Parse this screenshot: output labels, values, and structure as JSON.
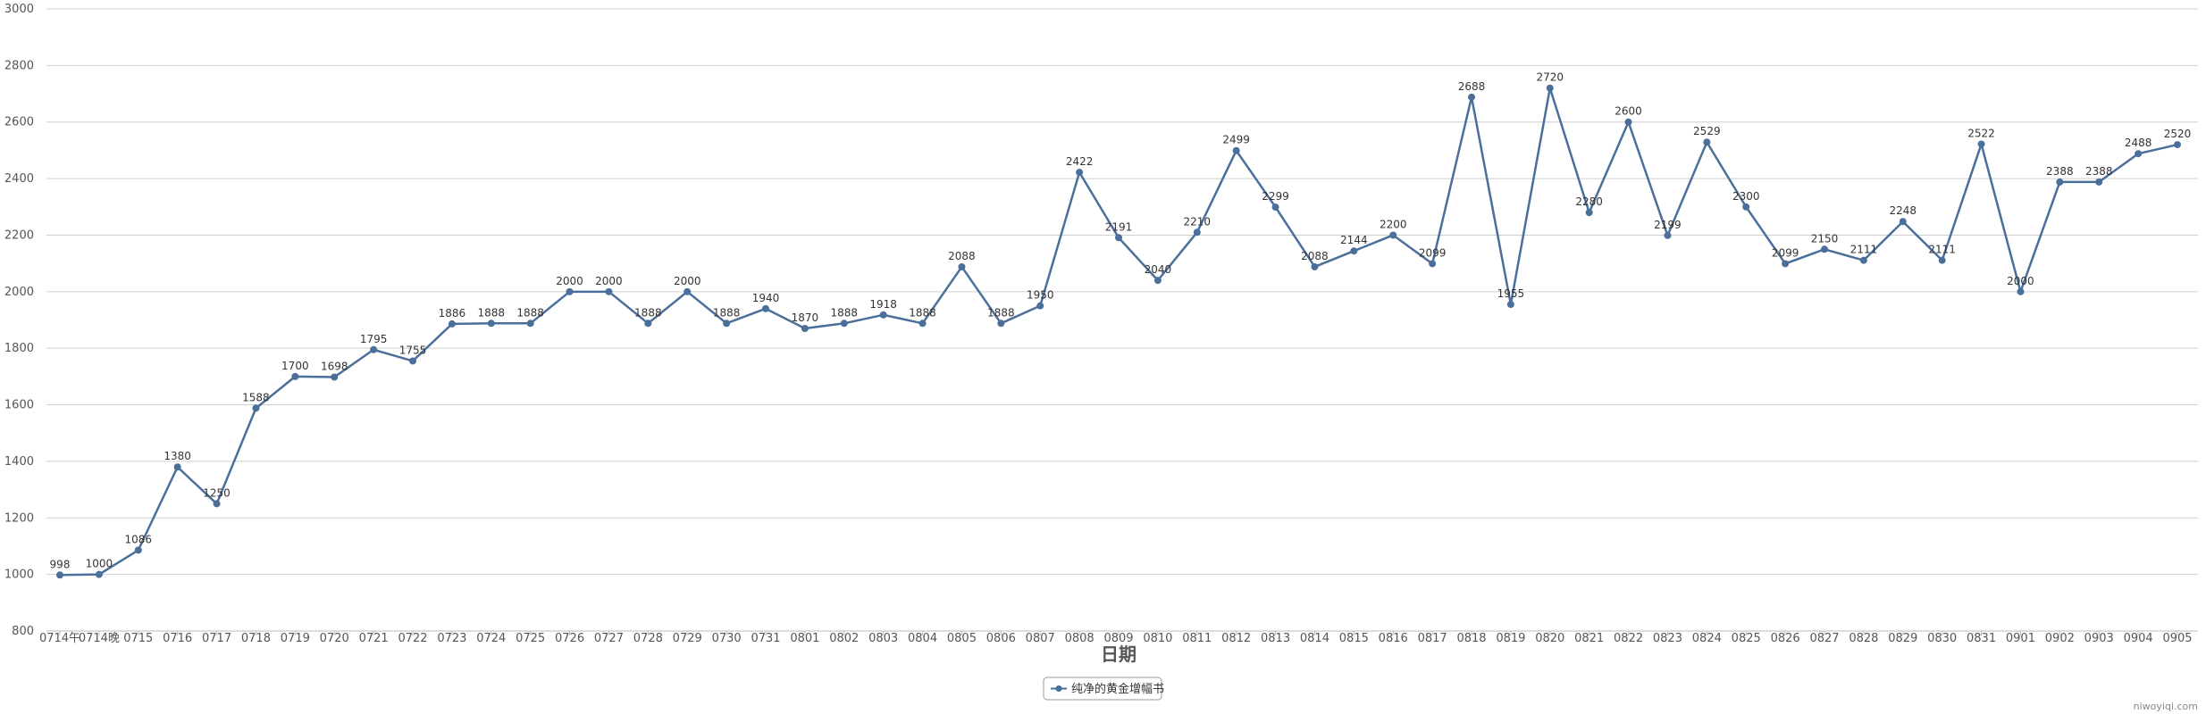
{
  "chart_data": {
    "type": "line",
    "xlabel": "日期",
    "ylabel": "",
    "ylim": [
      800,
      3000
    ],
    "yticks": [
      800,
      1000,
      1200,
      1400,
      1600,
      1800,
      2000,
      2200,
      2400,
      2600,
      2800,
      3000
    ],
    "grid": true,
    "legend_position": "bottom-center",
    "line_color": "#4a6f9a",
    "categories": [
      "0714午",
      "0714晚",
      "0715",
      "0716",
      "0717",
      "0718",
      "0719",
      "0720",
      "0721",
      "0722",
      "0723",
      "0724",
      "0725",
      "0726",
      "0727",
      "0728",
      "0729",
      "0730",
      "0731",
      "0801",
      "0802",
      "0803",
      "0804",
      "0805",
      "0806",
      "0807",
      "0808",
      "0809",
      "0810",
      "0811",
      "0812",
      "0813",
      "0814",
      "0815",
      "0816",
      "0817",
      "0818",
      "0819",
      "0820",
      "0821",
      "0822",
      "0823",
      "0824",
      "0825",
      "0826",
      "0827",
      "0828",
      "0829",
      "0830",
      "0831",
      "0901",
      "0902",
      "0903",
      "0904",
      "0905"
    ],
    "series": [
      {
        "name": "纯净的黄金增幅书",
        "values": [
          998,
          1000,
          1086,
          1380,
          1250,
          1588,
          1700,
          1698,
          1795,
          1755,
          1886,
          1888,
          1888,
          2000,
          2000,
          1888,
          2000,
          1888,
          1940,
          1870,
          1888,
          1918,
          1888,
          2088,
          1888,
          1950,
          2422,
          2191,
          2040,
          2210,
          2499,
          2299,
          2088,
          2144,
          2200,
          2099,
          2688,
          1955,
          2720,
          2280,
          2600,
          2199,
          2529,
          2300,
          2099,
          2150,
          2111,
          2248,
          2111,
          2522,
          2000,
          2388,
          2388,
          2488,
          2520
        ]
      }
    ]
  },
  "credit": "niwoyiqi.com"
}
